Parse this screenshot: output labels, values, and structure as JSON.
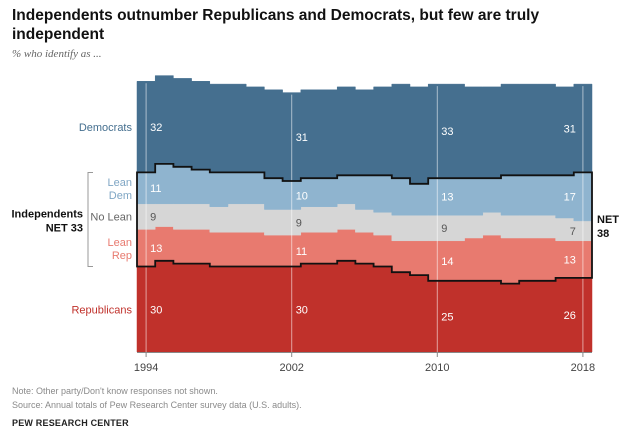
{
  "title": "Independents outnumber Republicans and Democrats, but few are truly independent",
  "subtitle": "% who identify as ...",
  "notes": [
    "Note: Other party/Don't know responses not shown.",
    "Source: Annual totals of Pew Research Center survey data (U.S. adults)."
  ],
  "credit": "PEW RESEARCH CENTER",
  "chart_data": {
    "type": "area",
    "stacked": true,
    "x": [
      1994,
      1995,
      1996,
      1997,
      1998,
      1999,
      2000,
      2001,
      2002,
      2003,
      2004,
      2005,
      2006,
      2007,
      2008,
      2009,
      2010,
      2011,
      2012,
      2013,
      2014,
      2015,
      2016,
      2017,
      2018
    ],
    "xlim": [
      1994,
      2018
    ],
    "ylim": [
      0,
      100
    ],
    "x_ticks": [
      "1994",
      "2002",
      "2010",
      "2018"
    ],
    "series": [
      {
        "name": "Republicans",
        "color": "#c0312b",
        "values": [
          30,
          32,
          31,
          31,
          30,
          30,
          30,
          30,
          30,
          31,
          31,
          32,
          31,
          30,
          28,
          27,
          25,
          25,
          25,
          25,
          24,
          25,
          25,
          26,
          26
        ]
      },
      {
        "name": "Lean Rep",
        "color": "#e87a6f",
        "values": [
          13,
          12,
          12,
          12,
          12,
          12,
          12,
          11,
          11,
          11,
          11,
          11,
          11,
          11,
          11,
          12,
          14,
          14,
          15,
          16,
          16,
          15,
          15,
          13,
          13
        ]
      },
      {
        "name": "No Lean",
        "color": "#d6d6d6",
        "values": [
          9,
          8,
          9,
          9,
          9,
          10,
          10,
          9,
          9,
          9,
          9,
          9,
          8,
          8,
          9,
          9,
          9,
          9,
          8,
          8,
          8,
          8,
          8,
          8,
          7
        ]
      },
      {
        "name": "Lean Dem",
        "color": "#8fb4cf",
        "values": [
          11,
          14,
          13,
          12,
          12,
          11,
          11,
          11,
          10,
          10,
          10,
          10,
          12,
          13,
          13,
          11,
          13,
          13,
          13,
          12,
          14,
          14,
          14,
          15,
          17
        ]
      },
      {
        "name": "Democrats",
        "color": "#456f8f",
        "values": [
          32,
          31,
          31,
          31,
          31,
          31,
          30,
          31,
          31,
          31,
          31,
          31,
          30,
          31,
          33,
          34,
          33,
          33,
          32,
          32,
          32,
          32,
          32,
          31,
          31
        ]
      }
    ],
    "category_labels": {
      "democrats": "Democrats",
      "lean_dem": [
        "Lean",
        "Dem"
      ],
      "no_lean": "No Lean",
      "lean_rep": [
        "Lean",
        "Rep"
      ],
      "republicans": "Republicans"
    },
    "net_labels": {
      "left": {
        "line1": "Independents",
        "line2": "NET 33"
      },
      "right": {
        "line1": "NET",
        "line2": "38"
      }
    },
    "value_labels": [
      {
        "year": 1994,
        "series": "Democrats",
        "value": "32"
      },
      {
        "year": 2002,
        "series": "Democrats",
        "value": "31"
      },
      {
        "year": 2010,
        "series": "Democrats",
        "value": "33"
      },
      {
        "year": 2018,
        "series": "Democrats",
        "value": "31"
      },
      {
        "year": 1994,
        "series": "Lean Dem",
        "value": "11"
      },
      {
        "year": 2002,
        "series": "Lean Dem",
        "value": "10"
      },
      {
        "year": 2010,
        "series": "Lean Dem",
        "value": "13"
      },
      {
        "year": 2018,
        "series": "Lean Dem",
        "value": "17"
      },
      {
        "year": 1994,
        "series": "No Lean",
        "value": "9"
      },
      {
        "year": 2002,
        "series": "No Lean",
        "value": "9"
      },
      {
        "year": 2010,
        "series": "No Lean",
        "value": "9"
      },
      {
        "year": 2018,
        "series": "No Lean",
        "value": "7"
      },
      {
        "year": 1994,
        "series": "Lean Rep",
        "value": "13"
      },
      {
        "year": 2002,
        "series": "Lean Rep",
        "value": "11"
      },
      {
        "year": 2010,
        "series": "Lean Rep",
        "value": "14"
      },
      {
        "year": 2018,
        "series": "Lean Rep",
        "value": "13"
      },
      {
        "year": 1994,
        "series": "Republicans",
        "value": "30"
      },
      {
        "year": 2002,
        "series": "Republicans",
        "value": "30"
      },
      {
        "year": 2010,
        "series": "Republicans",
        "value": "25"
      },
      {
        "year": 2018,
        "series": "Republicans",
        "value": "26"
      }
    ]
  }
}
